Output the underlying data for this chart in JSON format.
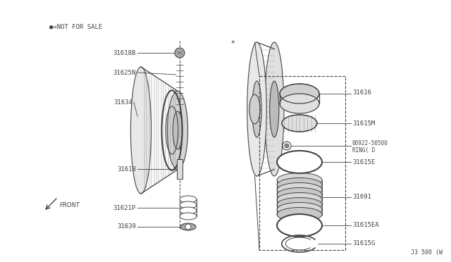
{
  "bg_color": "#f0ede8",
  "line_color": "#444444",
  "footnote": "J3 500 (W",
  "not_for_sale_text": "●=NOT FOR SALE",
  "front_label": "FRONT"
}
